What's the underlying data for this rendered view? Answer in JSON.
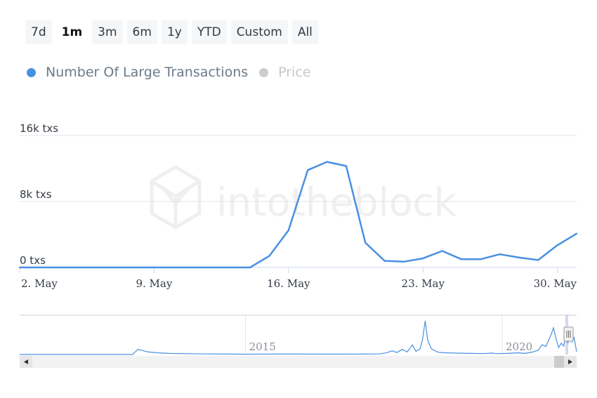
{
  "range_selector": {
    "buttons": [
      {
        "label": "7d",
        "active": false
      },
      {
        "label": "1m",
        "active": true
      },
      {
        "label": "3m",
        "active": false
      },
      {
        "label": "6m",
        "active": false
      },
      {
        "label": "1y",
        "active": false
      },
      {
        "label": "YTD",
        "active": false
      },
      {
        "label": "Custom",
        "active": false
      },
      {
        "label": "All",
        "active": false
      }
    ]
  },
  "legend": [
    {
      "label": "Number Of Large Transactions",
      "color": "#4a90e2",
      "active": true
    },
    {
      "label": "Price",
      "color": "#cccccc",
      "active": false
    }
  ],
  "watermark": "intotheblock",
  "colors": {
    "series": "#4a90e2",
    "grid": "#e6e6e6",
    "axis": "#ccd6eb"
  },
  "chart_data": {
    "type": "line",
    "y_tick_labels": [
      "0 txs",
      "8k txs",
      "16k txs"
    ],
    "y_ticks": [
      0,
      8000,
      16000
    ],
    "ylim": [
      0,
      16000
    ],
    "x_tick_labels": [
      "2. May",
      "9. May",
      "16. May",
      "23. May",
      "30. May"
    ],
    "x_ticks": [
      "2021-05-02",
      "2021-05-09",
      "2021-05-16",
      "2021-05-23",
      "2021-05-30"
    ],
    "xlim": [
      "2021-05-02",
      "2021-05-31"
    ],
    "series": [
      {
        "name": "Number Of Large Transactions",
        "points": [
          [
            "2021-05-02",
            0
          ],
          [
            "2021-05-03",
            0
          ],
          [
            "2021-05-04",
            0
          ],
          [
            "2021-05-05",
            0
          ],
          [
            "2021-05-06",
            0
          ],
          [
            "2021-05-07",
            0
          ],
          [
            "2021-05-08",
            0
          ],
          [
            "2021-05-09",
            0
          ],
          [
            "2021-05-10",
            0
          ],
          [
            "2021-05-11",
            0
          ],
          [
            "2021-05-12",
            0
          ],
          [
            "2021-05-13",
            0
          ],
          [
            "2021-05-14",
            0
          ],
          [
            "2021-05-15",
            1400
          ],
          [
            "2021-05-16",
            4500
          ],
          [
            "2021-05-17",
            11800
          ],
          [
            "2021-05-18",
            12800
          ],
          [
            "2021-05-19",
            12300
          ],
          [
            "2021-05-20",
            3000
          ],
          [
            "2021-05-21",
            800
          ],
          [
            "2021-05-22",
            700
          ],
          [
            "2021-05-23",
            1100
          ],
          [
            "2021-05-24",
            2000
          ],
          [
            "2021-05-25",
            1000
          ],
          [
            "2021-05-26",
            1000
          ],
          [
            "2021-05-27",
            1600
          ],
          [
            "2021-05-28",
            1200
          ],
          [
            "2021-05-29",
            900
          ],
          [
            "2021-05-30",
            2700
          ],
          [
            "2021-05-31",
            4100
          ]
        ]
      }
    ],
    "navigator": {
      "x_tick_labels": [
        "2015",
        "2020"
      ],
      "xlim": [
        2010.6,
        2021.45
      ],
      "ylim": [
        0,
        13000
      ],
      "selected_range": [
        "2021-05-02",
        "2021-05-31"
      ],
      "series_points": [
        [
          2010.6,
          0
        ],
        [
          2011.4,
          0
        ],
        [
          2012.1,
          0
        ],
        [
          2012.2,
          0
        ],
        [
          2012.6,
          0
        ],
        [
          2012.8,
          0
        ],
        [
          2012.9,
          1800
        ],
        [
          2013.0,
          1400
        ],
        [
          2013.1,
          900
        ],
        [
          2013.3,
          600
        ],
        [
          2013.5,
          400
        ],
        [
          2013.8,
          300
        ],
        [
          2014.2,
          200
        ],
        [
          2014.6,
          150
        ],
        [
          2015.0,
          100
        ],
        [
          2015.5,
          150
        ],
        [
          2016.0,
          150
        ],
        [
          2016.5,
          120
        ],
        [
          2017.0,
          120
        ],
        [
          2017.3,
          150
        ],
        [
          2017.6,
          200
        ],
        [
          2017.75,
          600
        ],
        [
          2017.85,
          1300
        ],
        [
          2017.95,
          700
        ],
        [
          2018.05,
          1800
        ],
        [
          2018.15,
          900
        ],
        [
          2018.25,
          3400
        ],
        [
          2018.32,
          1100
        ],
        [
          2018.4,
          2000
        ],
        [
          2018.45,
          5500
        ],
        [
          2018.5,
          12000
        ],
        [
          2018.55,
          5000
        ],
        [
          2018.62,
          2000
        ],
        [
          2018.75,
          800
        ],
        [
          2018.9,
          600
        ],
        [
          2019.1,
          500
        ],
        [
          2019.4,
          400
        ],
        [
          2019.6,
          300
        ],
        [
          2019.8,
          500
        ],
        [
          2019.9,
          300
        ],
        [
          2020.1,
          400
        ],
        [
          2020.3,
          600
        ],
        [
          2020.45,
          400
        ],
        [
          2020.6,
          900
        ],
        [
          2020.7,
          1500
        ],
        [
          2020.78,
          3500
        ],
        [
          2020.85,
          2800
        ],
        [
          2020.95,
          7000
        ],
        [
          2021.0,
          9500
        ],
        [
          2021.05,
          5500
        ],
        [
          2021.1,
          2500
        ],
        [
          2021.15,
          4000
        ],
        [
          2021.2,
          3000
        ],
        [
          2021.25,
          8000
        ],
        [
          2021.28,
          4000
        ],
        [
          2021.3,
          5500
        ],
        [
          2021.33,
          9000
        ],
        [
          2021.36,
          4500
        ],
        [
          2021.4,
          6000
        ],
        [
          2021.45,
          1000
        ]
      ]
    }
  }
}
